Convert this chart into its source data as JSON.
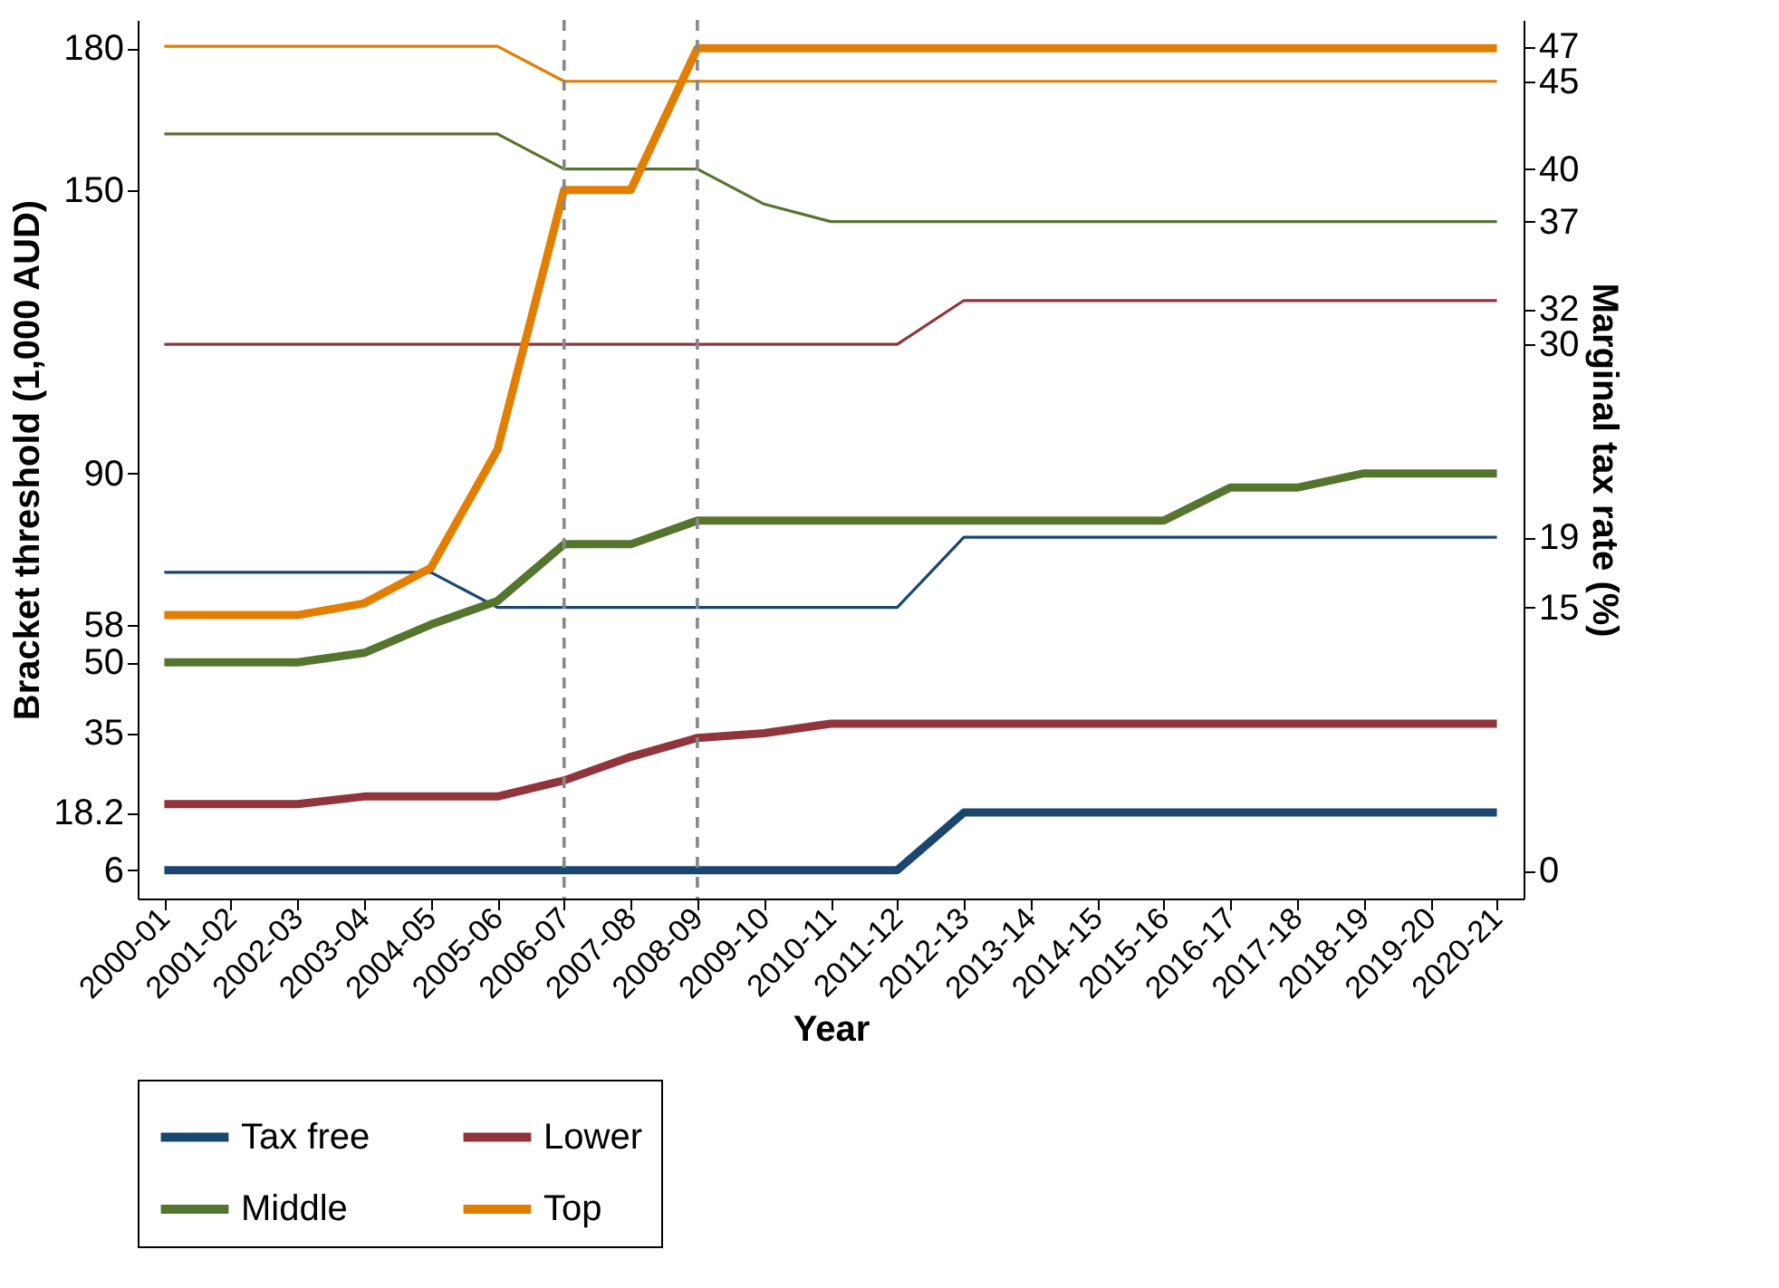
{
  "chart_data": {
    "type": "line",
    "xlabel": "Year",
    "ylabel": "Bracket threshold (1,000 AUD)",
    "y2label": "Marginal tax rate (%)",
    "categories": [
      "2000-01",
      "2001-02",
      "2002-03",
      "2003-04",
      "2004-05",
      "2005-06",
      "2006-07",
      "2007-08",
      "2008-09",
      "2009-10",
      "2010-11",
      "2011-12",
      "2012-13",
      "2013-14",
      "2014-15",
      "2015-16",
      "2016-17",
      "2017-18",
      "2018-19",
      "2019-20",
      "2020-21"
    ],
    "ylim": [
      0,
      186
    ],
    "yticks": [
      6,
      18.2,
      35,
      50,
      58,
      90,
      150,
      180
    ],
    "y2lim": [
      -1.6,
      48.5
    ],
    "y2ticks": [
      0,
      15,
      19,
      30,
      32,
      37,
      40,
      45,
      47
    ],
    "series": [
      {
        "color": "#1a476f",
        "axis": "y2",
        "values": [
          17,
          17,
          17,
          17,
          17,
          15,
          15,
          15,
          15,
          15,
          15,
          15,
          19,
          19,
          19,
          19,
          19,
          19,
          19,
          19,
          19
        ]
      },
      {
        "color": "#90353b",
        "axis": "y2",
        "values": [
          30,
          30,
          30,
          30,
          30,
          30,
          30,
          30,
          30,
          30,
          30,
          30,
          32.5,
          32.5,
          32.5,
          32.5,
          32.5,
          32.5,
          32.5,
          32.5,
          32.5
        ]
      },
      {
        "color": "#55752f",
        "axis": "y2",
        "values": [
          42,
          42,
          42,
          42,
          42,
          42,
          40,
          40,
          40,
          38,
          37,
          37,
          37,
          37,
          37,
          37,
          37,
          37,
          37,
          37,
          37
        ]
      },
      {
        "color": "#e37e00",
        "axis": "y2",
        "values": [
          47,
          47,
          47,
          47,
          47,
          47,
          45,
          45,
          45,
          45,
          45,
          45,
          45,
          45,
          45,
          45,
          45,
          45,
          45,
          45,
          45
        ]
      },
      {
        "name": "Tax free",
        "color": "#1a476f",
        "values": [
          6,
          6,
          6,
          6,
          6,
          6,
          6,
          6,
          6,
          6,
          6,
          6,
          18.2,
          18.2,
          18.2,
          18.2,
          18.2,
          18.2,
          18.2,
          18.2,
          18.2
        ]
      },
      {
        "name": "Lower",
        "color": "#90353b",
        "values": [
          20,
          20,
          20,
          21.6,
          21.6,
          21.6,
          25,
          30,
          34,
          35,
          37,
          37,
          37,
          37,
          37,
          37,
          37,
          37,
          37,
          37,
          37
        ]
      },
      {
        "name": "Middle",
        "color": "#55752f",
        "values": [
          50,
          50,
          50,
          52,
          58,
          63,
          75,
          75,
          80,
          80,
          80,
          80,
          80,
          80,
          80,
          80,
          87,
          87,
          90,
          90,
          90
        ]
      },
      {
        "name": "Top",
        "color": "#e37e00",
        "values": [
          60,
          60,
          60,
          62.5,
          70,
          95,
          150,
          150,
          180,
          180,
          180,
          180,
          180,
          180,
          180,
          180,
          180,
          180,
          180,
          180,
          180
        ]
      }
    ],
    "ref_lines": [
      {
        "axis": "x",
        "value": "2006-07",
        "line_style": "dashed",
        "color": "#888888"
      },
      {
        "axis": "x",
        "value": "2008-09",
        "line_style": "dashed",
        "color": "#888888"
      }
    ],
    "legend": "bottom",
    "grid": false,
    "marker": "none",
    "line_style": "solid"
  }
}
